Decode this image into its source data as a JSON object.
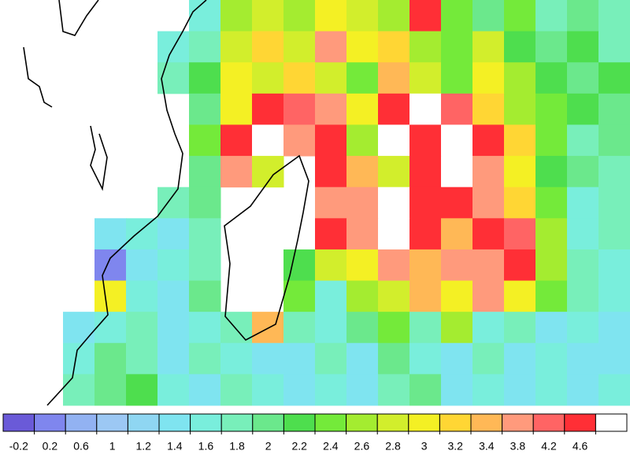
{
  "chart_data": {
    "type": "heatmap",
    "values": [
      [
        null,
        null,
        null,
        null,
        null,
        null,
        1.4,
        2.4,
        2.6,
        2.4,
        2.8,
        2.6,
        2.4,
        4.4,
        2.2,
        1.8,
        2.2,
        1.6,
        1.8,
        1.6
      ],
      [
        null,
        null,
        null,
        null,
        null,
        1.4,
        1.6,
        2.6,
        3,
        2.6,
        3.4,
        2.8,
        3,
        2.4,
        2.2,
        2.6,
        2,
        1.8,
        2,
        1.6
      ],
      [
        null,
        null,
        null,
        null,
        null,
        1.6,
        2,
        2.8,
        2.6,
        3,
        2.6,
        2.2,
        3.2,
        2.6,
        2.2,
        2.8,
        2.4,
        2,
        1.8,
        2
      ],
      [
        null,
        null,
        null,
        null,
        null,
        null,
        1.8,
        2.8,
        4.4,
        4,
        3.6,
        2.8,
        4.4,
        4.6,
        4,
        3,
        2.4,
        2.2,
        2,
        1.8
      ],
      [
        null,
        null,
        null,
        null,
        null,
        null,
        2.2,
        4.4,
        4.6,
        3.4,
        4.4,
        2.4,
        4.6,
        4.2,
        4.6,
        4.4,
        3,
        2.2,
        1.6,
        1.8
      ],
      [
        null,
        null,
        null,
        null,
        null,
        null,
        1.8,
        3.4,
        2.6,
        null,
        4.4,
        3.2,
        2.6,
        4.4,
        4.6,
        3.6,
        2.8,
        2,
        1.8,
        1.6
      ],
      [
        null,
        null,
        null,
        null,
        null,
        1.6,
        1.8,
        null,
        null,
        null,
        3.6,
        3.4,
        4.6,
        4.4,
        4.4,
        3.4,
        3,
        2.2,
        1.4,
        1.6
      ],
      [
        null,
        null,
        null,
        1.2,
        1.4,
        1.2,
        1.6,
        null,
        null,
        null,
        4.4,
        3.6,
        4.6,
        4.2,
        3.2,
        4.4,
        4,
        2.4,
        1.4,
        1.6
      ],
      [
        null,
        null,
        null,
        0,
        1.2,
        1.4,
        1.6,
        null,
        null,
        2,
        2.6,
        2.8,
        3.6,
        3.2,
        3.4,
        3.6,
        4.2,
        2.4,
        1.6,
        1.4
      ],
      [
        null,
        null,
        null,
        2.8,
        1.4,
        1.2,
        1.8,
        null,
        null,
        2.2,
        1.4,
        2.4,
        2.6,
        3.2,
        2.8,
        3.4,
        2.8,
        2.2,
        1.6,
        1.4
      ],
      [
        null,
        null,
        1.2,
        1.4,
        1.6,
        1.2,
        1.4,
        1.6,
        3.2,
        1.6,
        1.4,
        1.8,
        2.2,
        1.6,
        2.4,
        1.4,
        1.6,
        1.2,
        1.4,
        1.2
      ],
      [
        null,
        null,
        1.4,
        1.8,
        1.6,
        1.2,
        1.6,
        1.4,
        1.2,
        1.2,
        1.6,
        1.2,
        1.8,
        1.4,
        1.2,
        1.6,
        1.2,
        1.4,
        1.2,
        1.2
      ],
      [
        null,
        null,
        1.6,
        1.8,
        2,
        1.4,
        1.2,
        1.6,
        1.4,
        1.2,
        1.4,
        1.2,
        1.6,
        1.8,
        1.2,
        1.4,
        1.2,
        1.4,
        1.2,
        1.4
      ]
    ],
    "colorbar": {
      "ticks": [
        -0.2,
        0.2,
        0.6,
        1,
        1.2,
        1.4,
        1.6,
        1.8,
        2,
        2.2,
        2.4,
        2.6,
        2.8,
        3,
        3.2,
        3.4,
        3.8,
        4.2,
        4.6
      ],
      "colors": [
        "#6a5ad8",
        "#7f86ee",
        "#92b2f2",
        "#9cc8f4",
        "#8fd6f2",
        "#7fe4f0",
        "#79eedc",
        "#78efba",
        "#6be88c",
        "#4ede4e",
        "#74ea3a",
        "#a4ec30",
        "#d2ee2c",
        "#f4f024",
        "#ffd634",
        "#ffb856",
        "#ff9a7c",
        "#ff6464",
        "#ff2f36",
        "#ffffff"
      ]
    }
  }
}
